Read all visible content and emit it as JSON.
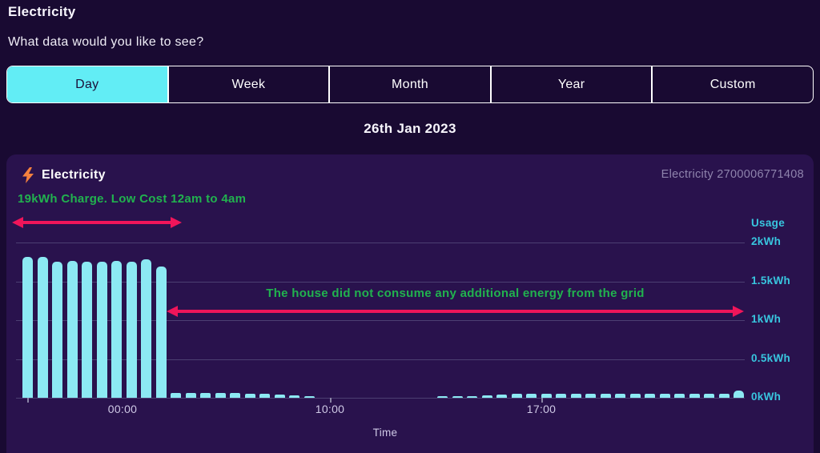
{
  "page": {
    "title": "Electricity",
    "subtitle": "What data would you like to see?",
    "date_label": "26th Jan 2023"
  },
  "tabs": [
    {
      "label": "Day",
      "selected": true
    },
    {
      "label": "Week",
      "selected": false
    },
    {
      "label": "Month",
      "selected": false
    },
    {
      "label": "Year",
      "selected": false
    },
    {
      "label": "Custom",
      "selected": false
    }
  ],
  "panel": {
    "title": "Electricity",
    "title_icon": "lightning-icon",
    "meter_id": "Electricity 2700006771408"
  },
  "annotations": {
    "charge_note": "19kWh Charge. Low Cost 12am to 4am",
    "grid_note": "The house did not consume any additional energy from the grid"
  },
  "colors": {
    "page_bg": "#190a32",
    "panel_bg": "#29124d",
    "bar_cyan": "#8ce9f3",
    "tab_selected_cyan": "#62edf5",
    "axis_cyan": "#38c6df",
    "annotation_green": "#21b24e",
    "arrow_red": "#f0155a",
    "muted_lavender": "#cfc9e6",
    "meter_gray": "#8f84ad",
    "bolt_orange": "#f5813e"
  },
  "chart_data": {
    "type": "bar",
    "title": "Electricity usage for 26th Jan 2023",
    "xlabel": "Time",
    "ylabel": "Usage",
    "x_interval_minutes": 30,
    "x_range": [
      "00:00",
      "24:00"
    ],
    "x_tick_labels": [
      "00:00",
      "10:00",
      "17:00"
    ],
    "y_ticks": [
      {
        "label": "2kWh",
        "value": 2.0
      },
      {
        "label": "1.5kWh",
        "value": 1.5
      },
      {
        "label": "1kWh",
        "value": 1.0
      },
      {
        "label": "0.5kWh",
        "value": 0.5
      },
      {
        "label": "0kWh",
        "value": 0.0
      }
    ],
    "ylim": [
      0,
      2.1
    ],
    "grid": true,
    "legend_position": "none",
    "values": [
      1.81,
      1.81,
      1.75,
      1.76,
      1.75,
      1.75,
      1.76,
      1.75,
      1.78,
      1.69,
      0.06,
      0.06,
      0.06,
      0.06,
      0.06,
      0.05,
      0.05,
      0.04,
      0.03,
      0.02,
      0,
      0,
      0,
      0,
      0,
      0,
      0,
      0,
      0.01,
      0.02,
      0.02,
      0.03,
      0.04,
      0.05,
      0.05,
      0.05,
      0.05,
      0.05,
      0.05,
      0.05,
      0.05,
      0.05,
      0.05,
      0.05,
      0.05,
      0.05,
      0.05,
      0.05,
      0.09
    ]
  }
}
